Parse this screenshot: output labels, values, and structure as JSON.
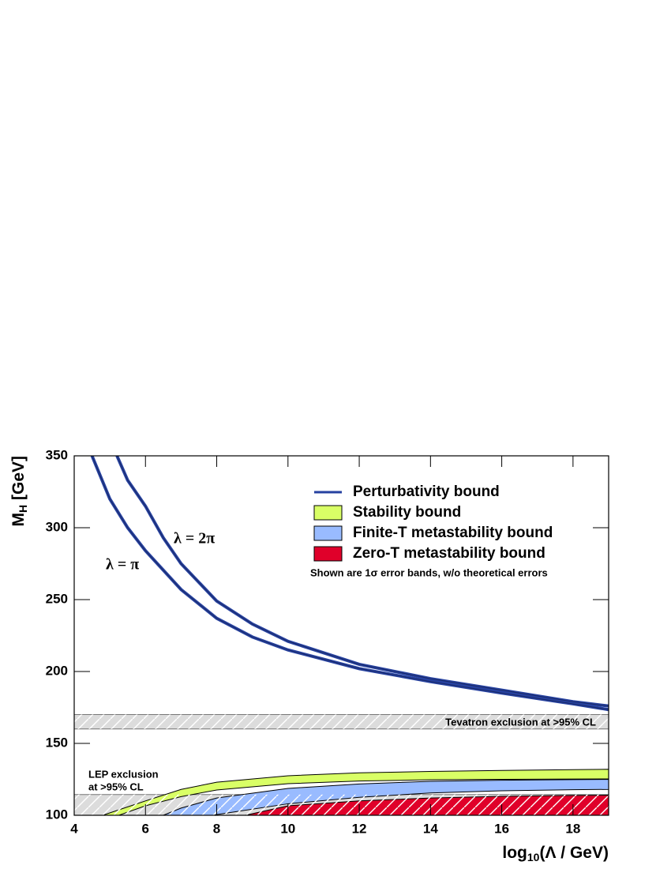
{
  "chart_data": {
    "type": "band",
    "xlabel": [
      "log",
      "10",
      "(Λ / GeV)"
    ],
    "ylabel": [
      "M",
      "H",
      " [GeV]"
    ],
    "xlim": [
      4,
      19
    ],
    "xticks": [
      4,
      6,
      8,
      10,
      12,
      14,
      16,
      18
    ],
    "ylim": [
      100,
      350
    ],
    "yticks": [
      100,
      150,
      200,
      250,
      300,
      350
    ],
    "legend_note": "Shown are 1σ error bands, w/o theoretical errors",
    "regions": [
      {
        "label": [
          "Tevatron exclusion at >95% CL"
        ],
        "ymin": 160,
        "ymax": 170
      },
      {
        "label": [
          "LEP exclusion",
          "at >95% CL"
        ],
        "ymin": 100,
        "ymax": 114.4
      }
    ],
    "curves": [
      {
        "name": "Perturbativity bound",
        "label": "λ = π",
        "color": "#2641a0",
        "x": [
          4.5,
          5,
          5.5,
          6,
          7,
          8,
          9,
          10,
          12,
          14,
          16,
          18,
          19
        ],
        "values": [
          350,
          320,
          300,
          284,
          257,
          237,
          224,
          215,
          202,
          193,
          185,
          177.5,
          173.5
        ]
      },
      {
        "label": "λ = 2π",
        "color": "#2641a0",
        "x": [
          5.2,
          5.5,
          6,
          6.5,
          7,
          8,
          9,
          10,
          12,
          14,
          16,
          18,
          19
        ],
        "values": [
          350,
          333,
          315,
          293,
          275,
          249,
          233,
          221,
          205,
          195,
          187,
          179,
          176
        ]
      }
    ],
    "bands": [
      {
        "name": "Stability bound",
        "color": "#d9ff66",
        "x": [
          4.8,
          6,
          7,
          8,
          10,
          12,
          14,
          16,
          18,
          19
        ],
        "upper": [
          100,
          110,
          118,
          123,
          127.5,
          129.5,
          130.5,
          131.2,
          131.7,
          132
        ],
        "lower": [
          96,
          106.6,
          113,
          117.6,
          122,
          123.8,
          124.7,
          125,
          125.2,
          125.3
        ]
      },
      {
        "name": "Finite-T metastability bound",
        "color": "#99bbff",
        "x": [
          6.5,
          7,
          8,
          10,
          12,
          14,
          16,
          18,
          19
        ],
        "upper": [
          100,
          105,
          112,
          118.7,
          121.8,
          123.6,
          124.4,
          124.8,
          125
        ],
        "lower": [
          92,
          96,
          100.5,
          108,
          112.5,
          115.5,
          117,
          117.8,
          118
        ]
      },
      {
        "name": "Zero-T metastability bound",
        "color": "#e0002a",
        "x": [
          8.8,
          10,
          12,
          14,
          16,
          18,
          19
        ],
        "upper": [
          100,
          106.6,
          110,
          112,
          113.2,
          113.8,
          114
        ],
        "lower": [
          90,
          94,
          97,
          98.5,
          99.3,
          99.7,
          99.8
        ]
      }
    ]
  }
}
